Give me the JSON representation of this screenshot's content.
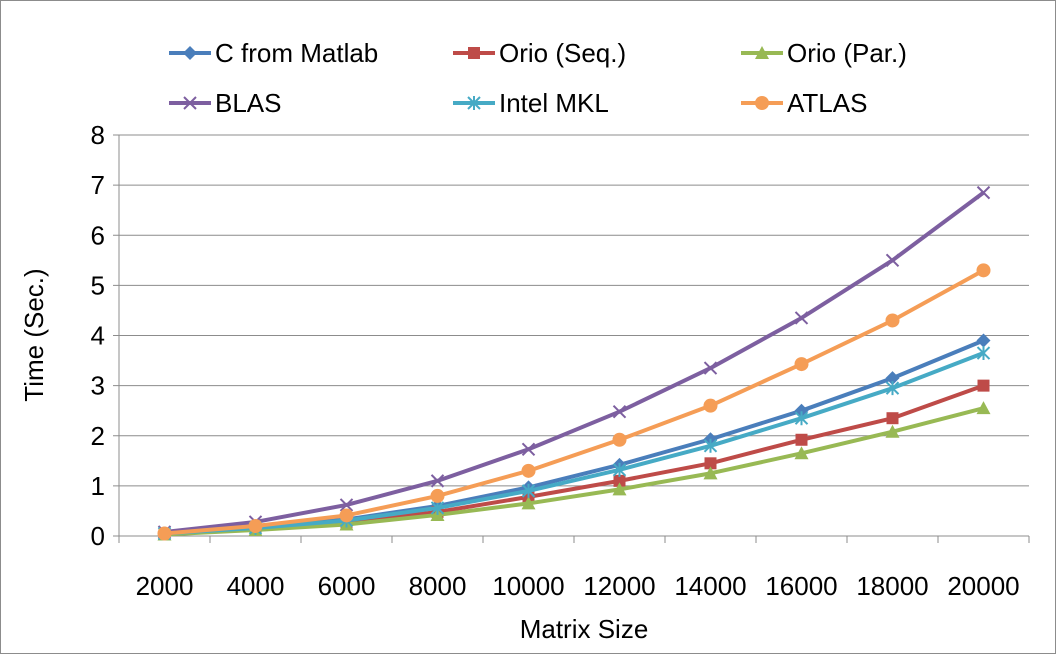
{
  "chart_data": {
    "type": "line",
    "title": "",
    "xlabel": "Matrix Size",
    "ylabel": "Time (Sec.)",
    "ylim": [
      0,
      8
    ],
    "y_ticks": [
      "0",
      "1",
      "2",
      "3",
      "4",
      "5",
      "6",
      "7",
      "8"
    ],
    "grid": "horizontal",
    "legend_position": "top",
    "categories": [
      "2000",
      "4000",
      "6000",
      "8000",
      "10000",
      "12000",
      "14000",
      "16000",
      "18000",
      "20000"
    ],
    "series": [
      {
        "name": "C from Matlab",
        "color": "#4a7ebb",
        "marker": "diamond",
        "values": [
          0.05,
          0.17,
          0.33,
          0.6,
          0.97,
          1.42,
          1.93,
          2.5,
          3.15,
          3.9
        ]
      },
      {
        "name": "Orio (Seq.)",
        "color": "#be4b48",
        "marker": "square",
        "values": [
          0.04,
          0.14,
          0.27,
          0.48,
          0.78,
          1.1,
          1.45,
          1.92,
          2.35,
          3.0
        ]
      },
      {
        "name": "Orio (Par.)",
        "color": "#98b954",
        "marker": "triangle",
        "values": [
          0.03,
          0.12,
          0.23,
          0.42,
          0.65,
          0.93,
          1.25,
          1.65,
          2.08,
          2.55
        ]
      },
      {
        "name": "BLAS",
        "color": "#7d5fa0",
        "marker": "x",
        "values": [
          0.08,
          0.28,
          0.62,
          1.1,
          1.73,
          2.48,
          3.35,
          4.35,
          5.5,
          6.85
        ]
      },
      {
        "name": "Intel MKL",
        "color": "#46aac5",
        "marker": "star",
        "values": [
          0.05,
          0.16,
          0.31,
          0.56,
          0.9,
          1.32,
          1.8,
          2.35,
          2.95,
          3.65
        ]
      },
      {
        "name": "ATLAS",
        "color": "#f59d56",
        "marker": "circle",
        "values": [
          0.05,
          0.2,
          0.41,
          0.8,
          1.3,
          1.92,
          2.6,
          3.43,
          4.3,
          5.3
        ]
      }
    ]
  }
}
